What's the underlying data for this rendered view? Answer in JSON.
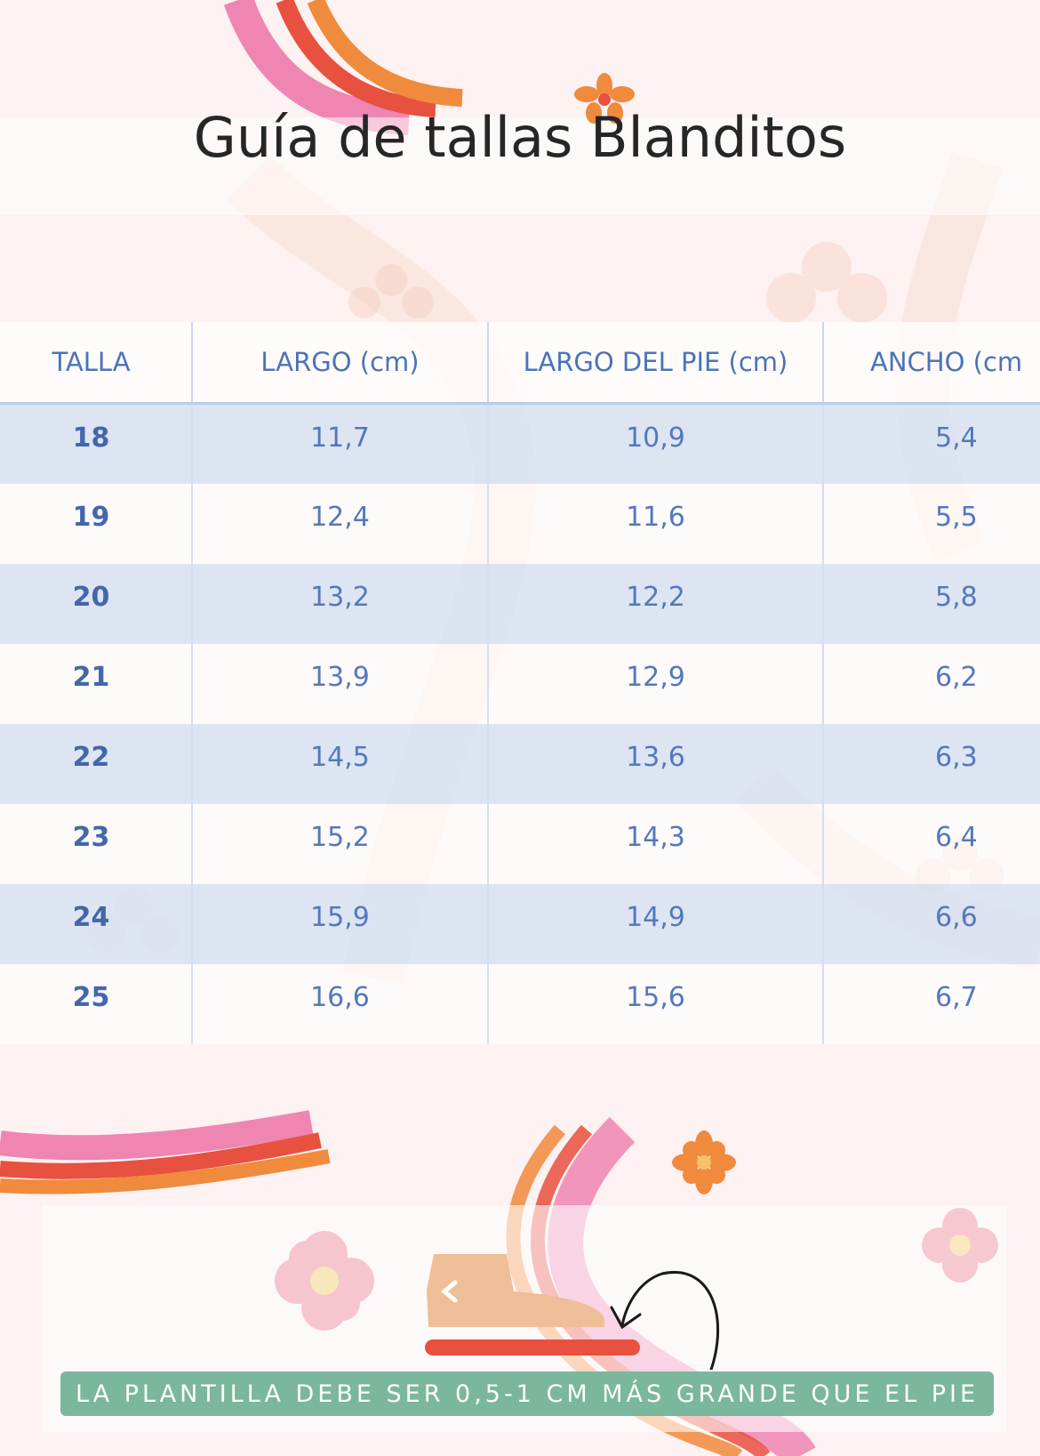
{
  "title": "Guía de tallas Blanditos",
  "table": {
    "headers": [
      "TALLA",
      "LARGO (cm)",
      "LARGO DEL PIE (cm)",
      "ANCHO (cm"
    ],
    "rows": [
      {
        "talla": "18",
        "largo": "11,7",
        "largo_pie": "10,9",
        "ancho": "5,4"
      },
      {
        "talla": "19",
        "largo": "12,4",
        "largo_pie": "11,6",
        "ancho": "5,5"
      },
      {
        "talla": "20",
        "largo": "13,2",
        "largo_pie": "12,2",
        "ancho": "5,8"
      },
      {
        "talla": "21",
        "largo": "13,9",
        "largo_pie": "12,9",
        "ancho": "6,2"
      },
      {
        "talla": "22",
        "largo": "14,5",
        "largo_pie": "13,6",
        "ancho": "6,3"
      },
      {
        "talla": "23",
        "largo": "15,2",
        "largo_pie": "14,3",
        "ancho": "6,4"
      },
      {
        "talla": "24",
        "largo": "15,9",
        "largo_pie": "14,9",
        "ancho": "6,6"
      },
      {
        "talla": "25",
        "largo": "16,6",
        "largo_pie": "15,6",
        "ancho": "6,7"
      }
    ]
  },
  "note": "LA PLANTILLA DEBE SER 0,5-1 CM MÁS GRANDE QUE EL PIE",
  "icons": [
    "flower-icon",
    "foot-icon",
    "insole-icon",
    "curved-arrow-icon"
  ],
  "colors": {
    "background": "#fdf1f1",
    "header_text": "#4a74b8",
    "row_stripe": "#d6e2f3",
    "banner": "#7ab79d",
    "rainbow_pink": "#ef85b1",
    "rainbow_red": "#e8503f",
    "rainbow_orange": "#f08a3c"
  }
}
